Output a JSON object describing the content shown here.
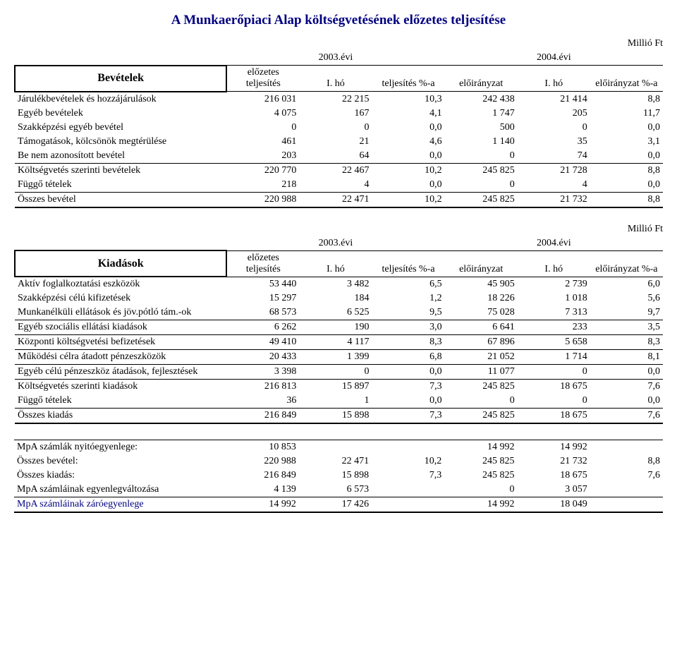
{
  "title": "A Munkaerőpiaci Alap költségvetésének előzetes teljesítése",
  "unit": "Millió Ft",
  "headers": {
    "year1": "2003.évi",
    "year2": "2004.évi",
    "col1": "előzetes teljesítés",
    "col2": "I. hó",
    "col3": "teljesítés %-a",
    "col4": "előirányzat",
    "col5": "I. hó",
    "col6": "előirányzat %-a"
  },
  "revenues": {
    "heading": "Bevételek",
    "rows": [
      {
        "label": "Járulékbevételek és hozzájárulások",
        "v": [
          "216 031",
          "22 215",
          "10,3",
          "242 438",
          "21 414",
          "8,8"
        ]
      },
      {
        "label": "Egyéb bevételek",
        "v": [
          "4 075",
          "167",
          "4,1",
          "1 747",
          "205",
          "11,7"
        ]
      },
      {
        "label": "Szakképzési egyéb bevétel",
        "v": [
          "0",
          "0",
          "0,0",
          "500",
          "0",
          "0,0"
        ]
      },
      {
        "label": "Támogatások, kölcsönök megtérülése",
        "v": [
          "461",
          "21",
          "4,6",
          "1 140",
          "35",
          "3,1"
        ]
      },
      {
        "label": "Be nem azonosított bevétel",
        "v": [
          "203",
          "64",
          "0,0",
          "0",
          "74",
          "0,0"
        ]
      },
      {
        "label": "Költségvetés szerinti bevételek",
        "v": [
          "220 770",
          "22 467",
          "10,2",
          "245 825",
          "21 728",
          "8,8"
        ]
      },
      {
        "label": "Függő tételek",
        "v": [
          "218",
          "4",
          "0,0",
          "0",
          "4",
          "0,0"
        ]
      }
    ],
    "total": {
      "label": "Összes bevétel",
      "v": [
        "220 988",
        "22 471",
        "10,2",
        "245 825",
        "21 732",
        "8,8"
      ]
    }
  },
  "expenses": {
    "heading": "Kiadások",
    "rows": [
      {
        "label": "Aktív foglalkoztatási eszközök",
        "v": [
          "53 440",
          "3 482",
          "6,5",
          "45 905",
          "2 739",
          "6,0"
        ]
      },
      {
        "label": "Szakképzési célú kifizetések",
        "v": [
          "15 297",
          "184",
          "1,2",
          "18 226",
          "1 018",
          "5,6"
        ]
      },
      {
        "label": "Munkanélküli ellátások és jöv.pótló tám.-ok",
        "v": [
          "68 573",
          "6 525",
          "9,5",
          "75 028",
          "7 313",
          "9,7"
        ]
      },
      {
        "label": "Egyéb szociális ellátási kiadások",
        "v": [
          "6 262",
          "190",
          "3,0",
          "6 641",
          "233",
          "3,5"
        ]
      },
      {
        "label": "Központi költségvetési befizetések",
        "v": [
          "49 410",
          "4 117",
          "8,3",
          "67 896",
          "5 658",
          "8,3"
        ]
      },
      {
        "label": "Működési célra átadott pénzeszközök",
        "v": [
          "20 433",
          "1 399",
          "6,8",
          "21 052",
          "1 714",
          "8,1"
        ]
      },
      {
        "label": "Egyéb célú pénzeszköz átadások, fejlesztések",
        "v": [
          "3 398",
          "0",
          "0,0",
          "11 077",
          "0",
          "0,0"
        ]
      },
      {
        "label": "Költségvetés szerinti kiadások",
        "v": [
          "216 813",
          "15 897",
          "7,3",
          "245 825",
          "18 675",
          "7,6"
        ]
      },
      {
        "label": "Függő tételek",
        "v": [
          "36",
          "1",
          "0,0",
          "0",
          "0",
          "0,0"
        ]
      }
    ],
    "total": {
      "label": "Összes kiadás",
      "v": [
        "216 849",
        "15 898",
        "7,3",
        "245 825",
        "18 675",
        "7,6"
      ]
    }
  },
  "summary": {
    "rows": [
      {
        "label": "MpA számlák nyitóegyenlege:",
        "v": [
          "10 853",
          "",
          "",
          "14 992",
          "14 992",
          ""
        ]
      },
      {
        "label": "Összes bevétel:",
        "v": [
          "220 988",
          "22 471",
          "10,2",
          "245 825",
          "21 732",
          "8,8"
        ]
      },
      {
        "label": "Összes kiadás:",
        "v": [
          "216 849",
          "15 898",
          "7,3",
          "245 825",
          "18 675",
          "7,6"
        ]
      },
      {
        "label": "MpA számláinak egyenlegváltozása",
        "v": [
          "4 139",
          "6 573",
          "",
          "0",
          "3 057",
          ""
        ]
      }
    ],
    "closing": {
      "label": "MpA számláinak  záróegyenlege",
      "v": [
        "14 992",
        "17 426",
        "",
        "14 992",
        "18 049",
        ""
      ]
    }
  }
}
